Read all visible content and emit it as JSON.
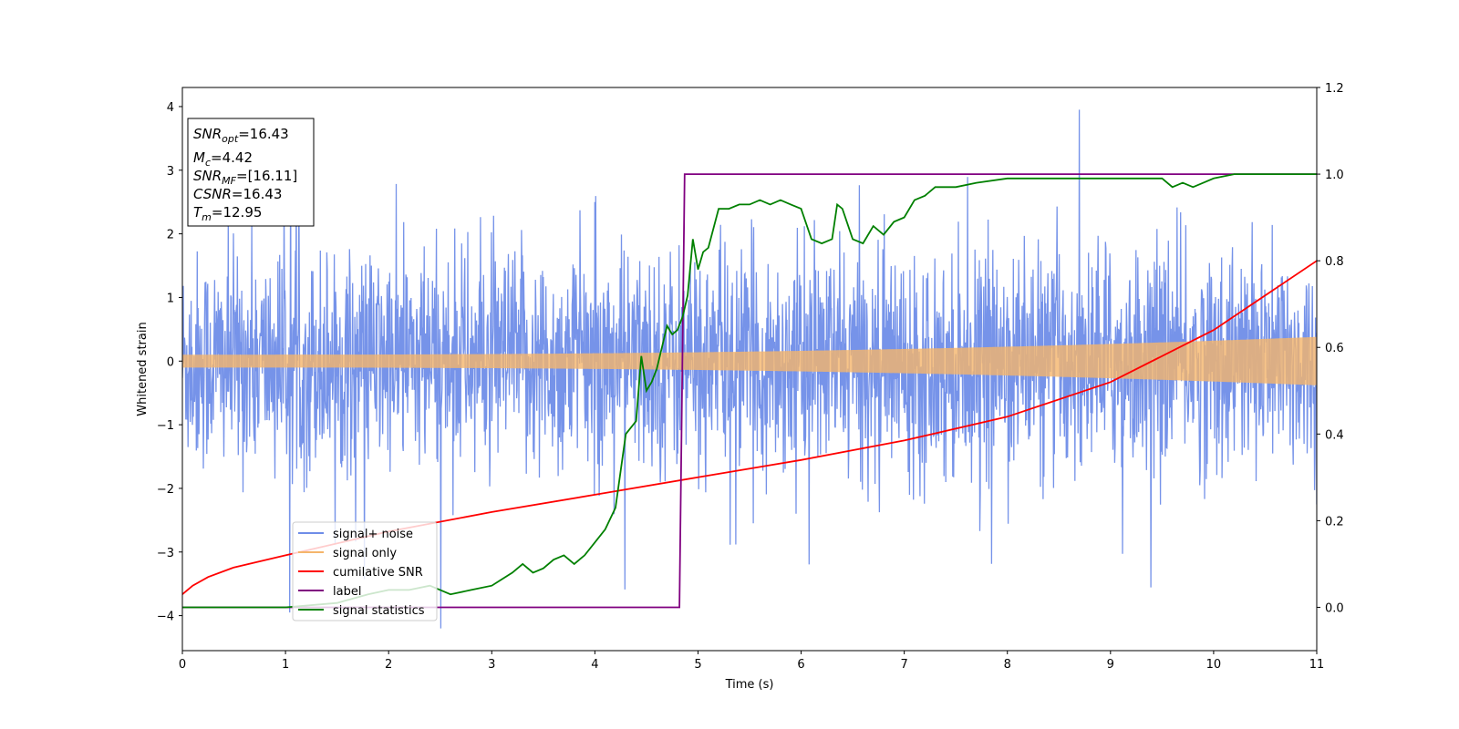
{
  "chart_data": {
    "type": "line",
    "xlabel": "Time (s)",
    "ylabel": "Whitened strain",
    "xlim": [
      0,
      11
    ],
    "ylim_left": [
      -4.55,
      4.3
    ],
    "ylim_right": [
      -0.1,
      1.2
    ],
    "x_ticks": [
      0,
      1,
      2,
      3,
      4,
      5,
      6,
      7,
      8,
      9,
      10,
      11
    ],
    "y_ticks_left": [
      -4,
      -3,
      -2,
      -1,
      0,
      1,
      2,
      3,
      4
    ],
    "y_ticks_right": [
      0.0,
      0.2,
      0.4,
      0.6,
      0.8,
      1.0,
      1.2
    ],
    "legend_position": "lower-left",
    "annotation": {
      "lines": [
        {
          "base": "SNR",
          "sub": "opt",
          "text": "=16.43"
        },
        {
          "base": "M",
          "sub": "c",
          "text": "=4.42"
        },
        {
          "base": "SNR",
          "sub": "MF",
          "text": "=[16.11]"
        },
        {
          "base": "CSNR",
          "sub": "",
          "text": "=16.43"
        },
        {
          "base": "T",
          "sub": "m",
          "text": "=12.95"
        }
      ]
    },
    "series": [
      {
        "name": "signal+ noise",
        "axis": "left",
        "color": "#6f8de8",
        "kind": "noise",
        "base_amplitude": 0.85,
        "extreme_range": [
          -4.2,
          3.95
        ]
      },
      {
        "name": "signal only",
        "axis": "left",
        "color": "#f5b56b",
        "kind": "chirp",
        "amplitude_start": 0.1,
        "amplitude_end": 0.38
      },
      {
        "name": "cumilative SNR",
        "axis": "right",
        "color": "#ff0000",
        "x": [
          0,
          0.1,
          0.25,
          0.5,
          1,
          2,
          3,
          4,
          5,
          6,
          7,
          8,
          9,
          10,
          11
        ],
        "y": [
          0.03,
          0.05,
          0.07,
          0.092,
          0.12,
          0.175,
          0.22,
          0.26,
          0.3,
          0.34,
          0.385,
          0.44,
          0.52,
          0.64,
          0.8
        ]
      },
      {
        "name": "label",
        "axis": "right",
        "color": "#800080",
        "x": [
          0,
          4.82,
          4.87,
          11
        ],
        "y": [
          0.0,
          0.0,
          1.0,
          1.0
        ]
      },
      {
        "name": "signal statistics",
        "axis": "right",
        "color": "#008000",
        "x": [
          0,
          0.5,
          1,
          1.5,
          1.8,
          2.0,
          2.2,
          2.4,
          2.5,
          2.6,
          2.8,
          3.0,
          3.2,
          3.3,
          3.4,
          3.5,
          3.6,
          3.7,
          3.8,
          3.9,
          4.0,
          4.1,
          4.2,
          4.3,
          4.4,
          4.45,
          4.5,
          4.55,
          4.6,
          4.65,
          4.7,
          4.75,
          4.8,
          4.85,
          4.9,
          4.95,
          5.0,
          5.05,
          5.1,
          5.2,
          5.3,
          5.4,
          5.5,
          5.6,
          5.7,
          5.8,
          5.9,
          6.0,
          6.1,
          6.2,
          6.3,
          6.35,
          6.4,
          6.5,
          6.6,
          6.7,
          6.8,
          6.9,
          7.0,
          7.1,
          7.2,
          7.3,
          7.5,
          7.7,
          8.0,
          8.3,
          8.6,
          8.8,
          9.0,
          9.3,
          9.5,
          9.6,
          9.7,
          9.8,
          9.9,
          10.0,
          10.2,
          10.5,
          11.0
        ],
        "y": [
          0.0,
          0.0,
          0.0,
          0.01,
          0.03,
          0.04,
          0.04,
          0.05,
          0.04,
          0.03,
          0.04,
          0.05,
          0.08,
          0.1,
          0.08,
          0.09,
          0.11,
          0.12,
          0.1,
          0.12,
          0.15,
          0.18,
          0.23,
          0.4,
          0.43,
          0.58,
          0.5,
          0.52,
          0.55,
          0.6,
          0.65,
          0.63,
          0.64,
          0.67,
          0.72,
          0.85,
          0.78,
          0.82,
          0.83,
          0.92,
          0.92,
          0.93,
          0.93,
          0.94,
          0.93,
          0.94,
          0.93,
          0.92,
          0.85,
          0.84,
          0.85,
          0.93,
          0.92,
          0.85,
          0.84,
          0.88,
          0.86,
          0.89,
          0.9,
          0.94,
          0.95,
          0.97,
          0.97,
          0.98,
          0.99,
          0.99,
          0.99,
          0.99,
          0.99,
          0.99,
          0.99,
          0.97,
          0.98,
          0.97,
          0.98,
          0.99,
          1.0,
          1.0,
          1.0
        ]
      }
    ]
  }
}
